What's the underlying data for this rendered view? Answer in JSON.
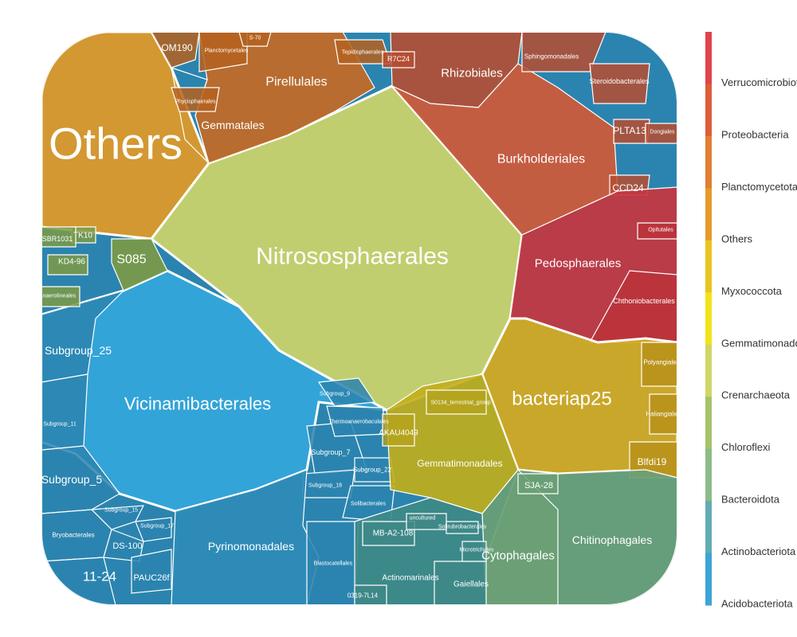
{
  "chart_data": {
    "type": "voronoi-treemap",
    "title": "",
    "legend": {
      "placement": "right",
      "entries": [
        {
          "name": "Verrucomicrobiota",
          "color": "#E0434C"
        },
        {
          "name": "Proteobacteria",
          "color": "#D95E39"
        },
        {
          "name": "Planctomycetota",
          "color": "#E07F34"
        },
        {
          "name": "Others",
          "color": "#E59A2A"
        },
        {
          "name": "Myxococcota",
          "color": "#E9C421"
        },
        {
          "name": "Gemmatimonadota",
          "color": "#F2E21B"
        },
        {
          "name": "Crenarchaeota",
          "color": "#CFD667"
        },
        {
          "name": "Chloroflexi",
          "color": "#A5C36B"
        },
        {
          "name": "Bacteroidota",
          "color": "#8DBB88"
        },
        {
          "name": "Actinobacteriota",
          "color": "#63ABB3"
        },
        {
          "name": "Acidobacteriota",
          "color": "#3DA4D6"
        }
      ]
    },
    "cells": [
      {
        "label": "Others",
        "phylum": "Others",
        "color": "#E29A26"
      },
      {
        "label": "Nitrososphaerales",
        "phylum": "Crenarchaeota",
        "color": "#CED569"
      },
      {
        "label": "Vicinamibacterales",
        "phylum": "Acidobacteriota",
        "color": "#34A7DB"
      },
      {
        "label": "Subgroup_25",
        "phylum": "Acidobacteriota",
        "color": "#2B84AF"
      },
      {
        "label": "Subgroup_5",
        "phylum": "Acidobacteriota",
        "color": "#2B84AF"
      },
      {
        "label": "Subgroup_11",
        "phylum": "Acidobacteriota",
        "color": "#2B84AF"
      },
      {
        "label": "Subgroup_7",
        "phylum": "Acidobacteriota",
        "color": "#2B84AF"
      },
      {
        "label": "Subgroup_9",
        "phylum": "Acidobacteriota",
        "color": "#2B84AF"
      },
      {
        "label": "Subgroup_15",
        "phylum": "Acidobacteriota",
        "color": "#2B84AF"
      },
      {
        "label": "Subgroup_17",
        "phylum": "Acidobacteriota",
        "color": "#2B84AF"
      },
      {
        "label": "Subgroup_18",
        "phylum": "Acidobacteriota",
        "color": "#2B84AF"
      },
      {
        "label": "Subgroup_22",
        "phylum": "Acidobacteriota",
        "color": "#2B84AF"
      },
      {
        "label": "Thermoanaerobaculales",
        "phylum": "Acidobacteriota",
        "color": "#2B84AF"
      },
      {
        "label": "Solibacterales",
        "phylum": "Acidobacteriota",
        "color": "#2B84AF"
      },
      {
        "label": "Pyrinomonadales",
        "phylum": "Acidobacteriota",
        "color": "#2F8CB9"
      },
      {
        "label": "Blastocatellales",
        "phylum": "Acidobacteriota",
        "color": "#2B84AF"
      },
      {
        "label": "Bryobacterales",
        "phylum": "Acidobacteriota",
        "color": "#2B84AF"
      },
      {
        "label": "DS-100",
        "phylum": "Acidobacteriota",
        "color": "#2B84AF"
      },
      {
        "label": "11-24",
        "phylum": "Acidobacteriota",
        "color": "#2B84AF"
      },
      {
        "label": "PAUC26f",
        "phylum": "Acidobacteriota",
        "color": "#2B84AF"
      },
      {
        "label": "Pirellulales",
        "phylum": "Planctomycetota",
        "color": "#C46A25"
      },
      {
        "label": "Gemmatales",
        "phylum": "Planctomycetota",
        "color": "#B5621F"
      },
      {
        "label": "OM190",
        "phylum": "Planctomycetota",
        "color": "#B5621F"
      },
      {
        "label": "Planctomycetales",
        "phylum": "Planctomycetota",
        "color": "#B5621F"
      },
      {
        "label": "Phycisphaerales",
        "phylum": "Planctomycetota",
        "color": "#B5621F"
      },
      {
        "label": "S-70",
        "phylum": "Planctomycetota",
        "color": "#B5621F"
      },
      {
        "label": "Tepidisphaerales",
        "phylum": "Planctomycetota",
        "color": "#B5621F"
      },
      {
        "label": "Rhizobiales",
        "phylum": "Proteobacteria",
        "color": "#B94C30"
      },
      {
        "label": "Burkholderiales",
        "phylum": "Proteobacteria",
        "color": "#D05A38"
      },
      {
        "label": "Sphingomonadales",
        "phylum": "Proteobacteria",
        "color": "#B94C30"
      },
      {
        "label": "Steroidobacterales",
        "phylum": "Proteobacteria",
        "color": "#B94C30"
      },
      {
        "label": "PLTA13",
        "phylum": "Proteobacteria",
        "color": "#B94C30"
      },
      {
        "label": "CCD24",
        "phylum": "Proteobacteria",
        "color": "#B94C30"
      },
      {
        "label": "R7C24",
        "phylum": "Proteobacteria",
        "color": "#B94C30"
      },
      {
        "label": "Dongiales",
        "phylum": "Proteobacteria",
        "color": "#B94C30"
      },
      {
        "label": "Pedosphaerales",
        "phylum": "Verrucomicrobiota",
        "color": "#C5363F"
      },
      {
        "label": "Chthoniobacterales",
        "phylum": "Verrucomicrobiota",
        "color": "#BB323B"
      },
      {
        "label": "Opitutales",
        "phylum": "Verrucomicrobiota",
        "color": "#BB323B"
      },
      {
        "label": "bacteriap25",
        "phylum": "Myxococcota",
        "color": "#D7AA1E"
      },
      {
        "label": "Polyangiales",
        "phylum": "Myxococcota",
        "color": "#B8901A"
      },
      {
        "label": "Haliangiales",
        "phylum": "Myxococcota",
        "color": "#B8901A"
      },
      {
        "label": "Blfdi19",
        "phylum": "Myxococcota",
        "color": "#B8901A"
      },
      {
        "label": "Gemmatimonadales",
        "phylum": "Gemmatimonadota",
        "color": "#C2AE1A"
      },
      {
        "label": "AKAU4049",
        "phylum": "Gemmatimonadota",
        "color": "#B5A21A"
      },
      {
        "label": "S0134_terrestrial_group",
        "phylum": "Gemmatimonadota",
        "color": "#B5A21A"
      },
      {
        "label": "S085",
        "phylum": "Chloroflexi",
        "color": "#7C9A45"
      },
      {
        "label": "KD4-96",
        "phylum": "Chloroflexi",
        "color": "#7C9A45"
      },
      {
        "label": "TK10",
        "phylum": "Chloroflexi",
        "color": "#7C9A45"
      },
      {
        "label": "SBR1031",
        "phylum": "Chloroflexi",
        "color": "#7C9A45"
      },
      {
        "label": "Anaerolineales",
        "phylum": "Chloroflexi",
        "color": "#7C9A45"
      },
      {
        "label": "Chitinophagales",
        "phylum": "Bacteroidota",
        "color": "#6BA075"
      },
      {
        "label": "Cytophagales",
        "phylum": "Bacteroidota",
        "color": "#6BA075"
      },
      {
        "label": "SJA-28",
        "phylum": "Bacteroidota",
        "color": "#6BA075"
      },
      {
        "label": "Actinomarinales",
        "phylum": "Actinobacteriota",
        "color": "#3E8A87"
      },
      {
        "label": "Gaiellales",
        "phylum": "Actinobacteriota",
        "color": "#3E8A87"
      },
      {
        "label": "MB-A2-108",
        "phylum": "Actinobacteriota",
        "color": "#3E8A87"
      },
      {
        "label": "uncultured",
        "phylum": "Actinobacteriota",
        "color": "#3E8A87"
      },
      {
        "label": "Solirubrobacterales",
        "phylum": "Actinobacteriota",
        "color": "#3E8A87"
      },
      {
        "label": "Microtrichales",
        "phylum": "Actinobacteriota",
        "color": "#3E8A87"
      },
      {
        "label": "0319-7L14",
        "phylum": "Actinobacteriota",
        "color": "#3E8A87"
      }
    ]
  }
}
